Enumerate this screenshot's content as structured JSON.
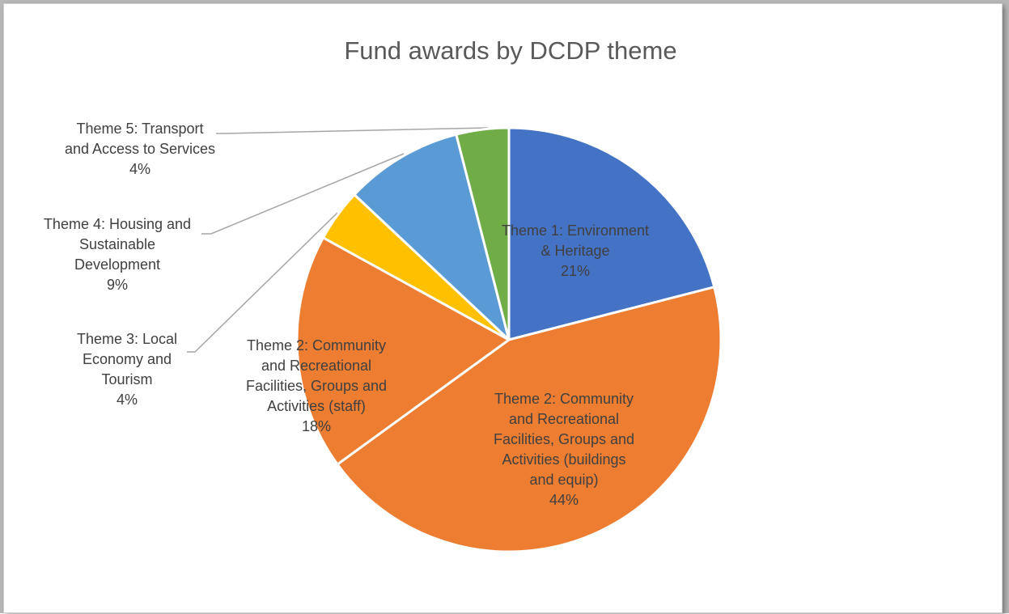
{
  "chart_data": {
    "type": "pie",
    "title": "Fund awards by DCDP theme",
    "slices": [
      {
        "label": [
          "Theme 1: Environment",
          "& Heritage"
        ],
        "value": 21,
        "pct": "21%",
        "color": "#4472C4"
      },
      {
        "label": [
          "Theme 2: Community",
          "and Recreational",
          "Facilities, Groups and",
          "Activities (buildings",
          "and equip)"
        ],
        "value": 44,
        "pct": "44%",
        "color": "#ED7D31"
      },
      {
        "label": [
          "Theme 2: Community",
          "and Recreational",
          "Facilities, Groups and",
          "Activities (staff)"
        ],
        "value": 18,
        "pct": "18%",
        "color": "#ED7D31"
      },
      {
        "label": [
          "Theme 3: Local",
          "Economy and",
          "Tourism"
        ],
        "value": 4,
        "pct": "4%",
        "color": "#FFC000"
      },
      {
        "label": [
          "Theme 4: Housing and",
          "Sustainable",
          "Development"
        ],
        "value": 9,
        "pct": "9%",
        "color": "#5B9BD5"
      },
      {
        "label": [
          "Theme 5: Transport",
          "and Access to Services"
        ],
        "value": 4,
        "pct": "4%",
        "color": "#70AD47"
      }
    ],
    "start_angle": "12 o'clock",
    "direction": "clockwise",
    "legend": "none"
  }
}
